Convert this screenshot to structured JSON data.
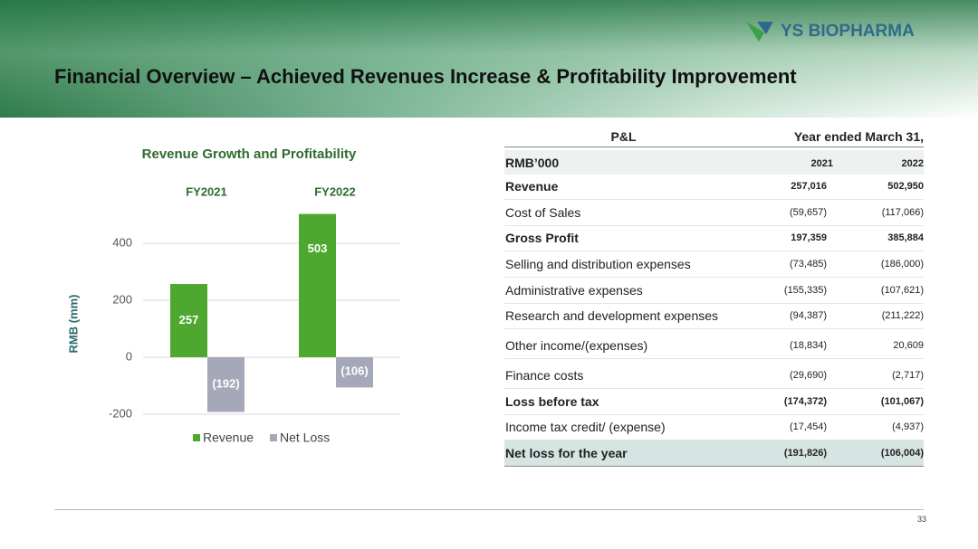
{
  "header": {
    "title": "Financial Overview – Achieved Revenues Increase &  Profitability Improvement",
    "logo": "YS BIOPHARMA"
  },
  "chart_data": {
    "type": "bar",
    "title": "Revenue Growth and Profitability",
    "y_label": "RMB (mm)",
    "categories": [
      "FY2021",
      "FY2022"
    ],
    "series": [
      {
        "name": "Revenue",
        "color": "#4ea72e",
        "values": [
          257,
          503
        ],
        "value_labels": [
          "257",
          "503"
        ]
      },
      {
        "name": "Net Loss",
        "color": "#a5a8b8",
        "values": [
          -192,
          -106
        ],
        "value_labels": [
          "(192)",
          "(106)"
        ]
      }
    ],
    "ylim": [
      -200,
      600
    ],
    "yticks": [
      -200,
      0,
      200,
      400
    ],
    "grid": true,
    "legend": "bottom"
  },
  "table": {
    "title": "P&L",
    "period": "Year ended March 31,",
    "unit": "RMB’000",
    "columns": [
      "2021",
      "2022"
    ],
    "rows": [
      {
        "cells": [
          "Revenue",
          "257,016",
          "502,950"
        ],
        "bold": true
      },
      {
        "cells": [
          "Cost of Sales",
          "(59,657)",
          "(117,066)"
        ],
        "bold": false
      },
      {
        "cells": [
          "Gross Profit",
          "197,359",
          "385,884"
        ],
        "bold": true
      },
      {
        "cells": [
          "Selling and distribution expenses",
          "(73,485)",
          "(186,000)"
        ],
        "bold": false
      },
      {
        "cells": [
          "Administrative expenses",
          "(155,335)",
          "(107,621)"
        ],
        "bold": false
      },
      {
        "cells": [
          "Research and development expenses",
          "(94,387)",
          "(211,222)"
        ],
        "bold": false
      },
      {
        "cells": [
          "Other income/(expenses)",
          "(18,834)",
          "20,609"
        ],
        "bold": false
      },
      {
        "cells": [
          "Finance costs",
          "(29,690)",
          "(2,717)"
        ],
        "bold": false
      },
      {
        "cells": [
          "Loss before tax",
          "(174,372)",
          "(101,067)"
        ],
        "bold": true
      },
      {
        "cells": [
          "Income tax credit/ (expense)",
          "(17,454)",
          "(4,937)"
        ],
        "bold": false
      },
      {
        "cells": [
          "Net loss for the year",
          "(191,826)",
          "(106,004)"
        ],
        "bold": true
      }
    ]
  },
  "footer": {
    "page": "33"
  }
}
